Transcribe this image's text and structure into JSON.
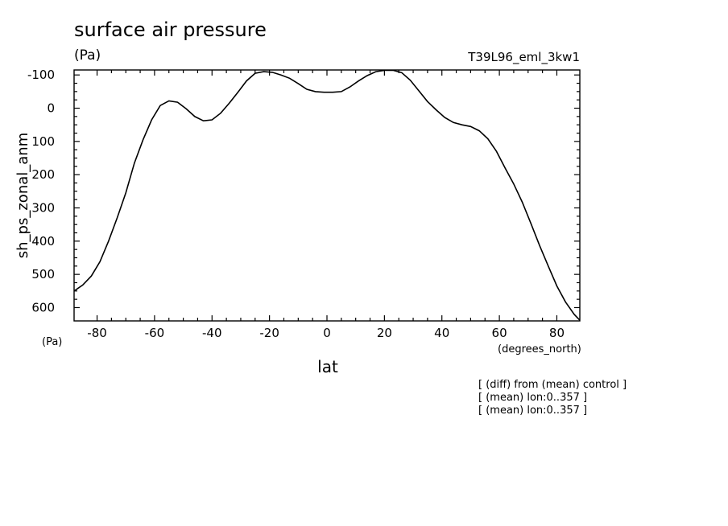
{
  "chart_data": {
    "type": "line",
    "title": "surface air pressure",
    "units_label": "(Pa)",
    "run_label": "T39L96_eml_3kw1",
    "ylabel": "sh_ps_zonal_anm",
    "yunits": "(Pa)",
    "xlabel": "lat",
    "xunits": "(degrees_north)",
    "notes": [
      "[ (diff) from (mean) control ]",
      "[ (mean) lon:0..357 ]",
      "[ (mean) lon:0..357 ]"
    ],
    "xlim": [
      -88,
      88
    ],
    "ylim": [
      640,
      -115
    ],
    "y_inverted": true,
    "xticks": [
      -80,
      -60,
      -40,
      -20,
      0,
      20,
      40,
      60,
      80
    ],
    "xtick_labels": [
      "-80",
      "-60",
      "-40",
      "-20",
      "0",
      "20",
      "40",
      "60",
      "80"
    ],
    "yticks": [
      -100,
      0,
      100,
      200,
      300,
      400,
      500,
      600
    ],
    "ytick_labels": [
      "-100",
      "0",
      "100",
      "200",
      "300",
      "400",
      "500",
      "600"
    ],
    "series": [
      {
        "x": [
          -88,
          -85,
          -82,
          -79,
          -76,
          -73,
          -70,
          -67,
          -64,
          -61,
          -58,
          -55,
          -52,
          -49,
          -46,
          -43,
          -40,
          -37,
          -34,
          -31,
          -28,
          -25,
          -22,
          -19,
          -16,
          -13,
          -10,
          -7,
          -4,
          -1,
          2,
          5,
          8,
          11,
          14,
          17,
          20,
          23,
          26,
          29,
          32,
          35,
          38,
          41,
          44,
          47,
          50,
          53,
          56,
          59,
          62,
          65,
          68,
          71,
          74,
          77,
          80,
          83,
          86,
          88
        ],
        "y": [
          550,
          532,
          505,
          462,
          400,
          330,
          255,
          165,
          95,
          35,
          -8,
          -22,
          -18,
          2,
          25,
          38,
          35,
          15,
          -15,
          -48,
          -82,
          -105,
          -110,
          -108,
          -100,
          -90,
          -74,
          -57,
          -50,
          -48,
          -48,
          -50,
          -64,
          -82,
          -98,
          -110,
          -114,
          -114,
          -107,
          -84,
          -52,
          -20,
          5,
          28,
          43,
          50,
          55,
          68,
          92,
          130,
          180,
          228,
          283,
          347,
          413,
          475,
          535,
          583,
          620,
          638
        ]
      }
    ]
  }
}
